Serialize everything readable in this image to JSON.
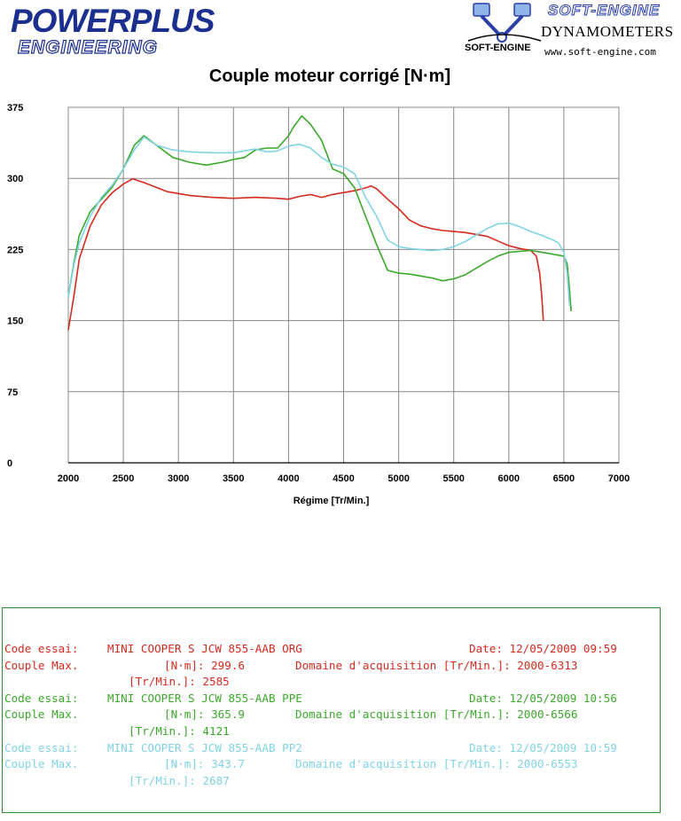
{
  "header": {
    "logo_left_top": "POWERPLUS",
    "logo_left_bottom": "ENGINEERING",
    "logo_right_title": "SOFT-ENGINE",
    "logo_right_dyn": "DYNAMOMETERS",
    "logo_right_small": "SOFT-ENGINE",
    "logo_right_web": "www.soft-engine.com"
  },
  "colors": {
    "red": "#d42a1f",
    "green": "#3aa829",
    "cyan": "#7fd3e4",
    "grid": "#888888",
    "frame": "#2e8b2e"
  },
  "chart_data": {
    "type": "line",
    "title": "Couple moteur corrigé [N·m]",
    "xlabel": "Régime [Tr/Min.]",
    "ylabel": "",
    "xlim": [
      2000,
      7000
    ],
    "ylim": [
      0,
      375
    ],
    "xticks": [
      2000,
      2500,
      3000,
      3500,
      4000,
      4500,
      5000,
      5500,
      6000,
      6500,
      7000
    ],
    "yticks": [
      0,
      75,
      150,
      225,
      300,
      375
    ],
    "grid": true,
    "series": [
      {
        "color": "#d42a1f",
        "x": [
          2000,
          2050,
          2100,
          2200,
          2300,
          2400,
          2500,
          2585,
          2700,
          2900,
          3100,
          3300,
          3500,
          3700,
          3900,
          4000,
          4100,
          4200,
          4300,
          4400,
          4500,
          4600,
          4700,
          4750,
          4800,
          4900,
          5000,
          5100,
          5200,
          5300,
          5400,
          5500,
          5600,
          5700,
          5800,
          5900,
          6000,
          6100,
          6150,
          6200,
          6250,
          6280,
          6300,
          6313
        ],
        "y": [
          140,
          175,
          215,
          250,
          272,
          285,
          294,
          299.6,
          295,
          286,
          282,
          280,
          279,
          280,
          279,
          278,
          281,
          283,
          280,
          283,
          285,
          287,
          290,
          292,
          289,
          278,
          268,
          256,
          250,
          247,
          245,
          244,
          243,
          241,
          239,
          234,
          229,
          226,
          225,
          224,
          218,
          200,
          175,
          150
        ]
      },
      {
        "color": "#3aa829",
        "x": [
          2000,
          2050,
          2100,
          2200,
          2300,
          2400,
          2500,
          2600,
          2687,
          2800,
          2950,
          3100,
          3250,
          3400,
          3500,
          3600,
          3700,
          3800,
          3900,
          4000,
          4050,
          4121,
          4200,
          4300,
          4400,
          4500,
          4600,
          4700,
          4800,
          4900,
          5000,
          5100,
          5200,
          5300,
          5400,
          5500,
          5600,
          5700,
          5800,
          5900,
          6000,
          6100,
          6200,
          6300,
          6400,
          6500,
          6530,
          6550,
          6566
        ],
        "y": [
          175,
          210,
          240,
          265,
          278,
          291,
          310,
          335,
          345,
          335,
          322,
          317,
          314,
          317,
          320,
          322,
          330,
          332,
          332,
          345,
          355,
          365.9,
          357,
          340,
          310,
          305,
          290,
          260,
          230,
          203,
          200,
          199,
          197,
          195,
          192,
          194,
          198,
          205,
          212,
          218,
          222,
          223,
          224,
          222,
          220,
          218,
          210,
          185,
          160
        ]
      },
      {
        "color": "#7fd3e4",
        "x": [
          2000,
          2050,
          2100,
          2200,
          2300,
          2400,
          2500,
          2600,
          2687,
          2800,
          2950,
          3100,
          3300,
          3500,
          3700,
          3800,
          3900,
          4000,
          4100,
          4200,
          4300,
          4400,
          4500,
          4600,
          4700,
          4800,
          4900,
          5000,
          5100,
          5200,
          5300,
          5400,
          5500,
          5600,
          5700,
          5800,
          5900,
          6000,
          6100,
          6200,
          6300,
          6400,
          6450,
          6500,
          6530,
          6553
        ],
        "y": [
          175,
          208,
          232,
          260,
          280,
          293,
          310,
          330,
          343.7,
          335,
          330,
          328,
          327,
          327,
          331,
          328,
          329,
          334,
          336,
          332,
          322,
          315,
          312,
          305,
          280,
          260,
          235,
          228,
          226,
          225,
          224,
          225,
          228,
          233,
          240,
          247,
          252,
          253,
          249,
          244,
          240,
          235,
          232,
          222,
          200,
          165
        ]
      }
    ]
  },
  "tests": [
    {
      "color": "#d42a1f",
      "code_label": "Code essai:",
      "code_value": "MINI COOPER S JCW 855-AAB ORG",
      "date": "Date: 12/05/2009 09:59",
      "couple_label": "Couple Max.",
      "unit": "[N·m]: 299.6",
      "domain": "Domaine d'acquisition [Tr/Min.]: 2000-6313",
      "rpm": "[Tr/Min.]: 2585"
    },
    {
      "color": "#3aa829",
      "code_label": "Code essai:",
      "code_value": "MINI COOPER S JCW 855-AAB PPE",
      "date": "Date: 12/05/2009 10:56",
      "couple_label": "Couple Max.",
      "unit": "[N·m]: 365.9",
      "domain": "Domaine d'acquisition [Tr/Min.]: 2000-6566",
      "rpm": "[Tr/Min.]: 4121"
    },
    {
      "color": "#7fd3e4",
      "code_label": "Code essai:",
      "code_value": "MINI COOPER S JCW 855-AAB PP2",
      "date": "Date: 12/05/2009 10:59",
      "couple_label": "Couple Max.",
      "unit": "[N·m]: 343.7",
      "domain": "Domaine d'acquisition [Tr/Min.]: 2000-6553",
      "rpm": "[Tr/Min.]: 2687"
    }
  ]
}
